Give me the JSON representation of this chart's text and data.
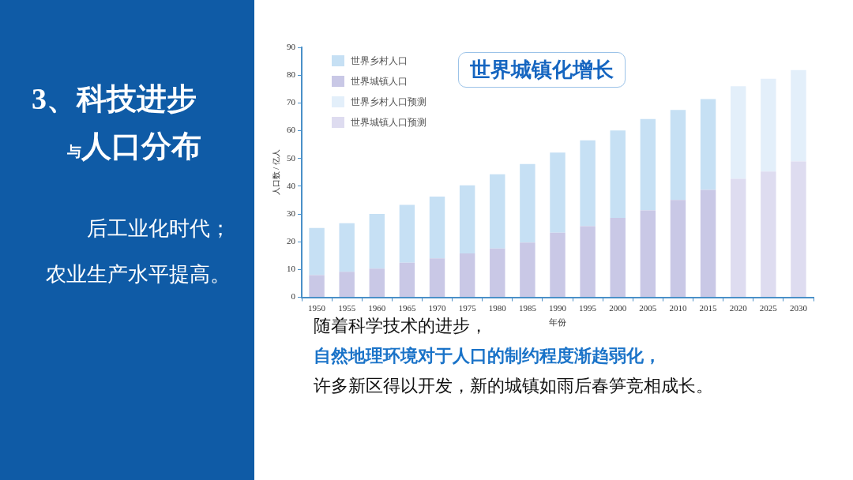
{
  "chart_data": {
    "type": "bar",
    "stacked": true,
    "title": "世界城镇化增长",
    "xlabel": "年份",
    "ylabel": "人口数 / 亿人",
    "categories": [
      "1950",
      "1955",
      "1960",
      "1965",
      "1970",
      "1975",
      "1980",
      "1985",
      "1990",
      "1995",
      "2000",
      "2005",
      "2010",
      "2015",
      "2020",
      "2025",
      "2030"
    ],
    "series": [
      {
        "name": "世界城镇人口",
        "color": "#c9c8e6",
        "values": [
          8,
          9.2,
          10.3,
          12.5,
          14,
          15.8,
          17.6,
          19.7,
          23.3,
          25.6,
          28.6,
          31.3,
          35.1,
          38.7,
          null,
          null,
          null
        ]
      },
      {
        "name": "世界城镇人口预测",
        "color": "#dedcf0",
        "values": [
          null,
          null,
          null,
          null,
          null,
          null,
          null,
          null,
          null,
          null,
          null,
          null,
          null,
          null,
          42.7,
          45.3,
          48.9
        ]
      },
      {
        "name": "世界乡村人口",
        "color": "#c6e0f4",
        "values": [
          17,
          17.5,
          19.7,
          20.8,
          22.3,
          24.5,
          26.7,
          28.3,
          28.8,
          30.9,
          31.5,
          32.9,
          32.4,
          32.7,
          null,
          null,
          null
        ]
      },
      {
        "name": "世界乡村人口预测",
        "color": "#e3effa",
        "values": [
          null,
          null,
          null,
          null,
          null,
          null,
          null,
          null,
          null,
          null,
          null,
          null,
          null,
          null,
          33.3,
          33.4,
          32.9
        ]
      }
    ],
    "ylim": [
      0,
      90
    ],
    "yticks": [
      0,
      10,
      20,
      30,
      40,
      50,
      60,
      70,
      80,
      90
    ],
    "grid": false,
    "legend": "top left",
    "annotations": [
      "3、科技进步",
      "与人口分布",
      "后工业化时代；",
      "农业生产水平提高。",
      "随着科学技术的进步，",
      "自然地理环境对于人口的制约程度渐趋弱化，",
      "许多新区得以开发，新的城镇如雨后春笋竞相成长。"
    ]
  }
}
